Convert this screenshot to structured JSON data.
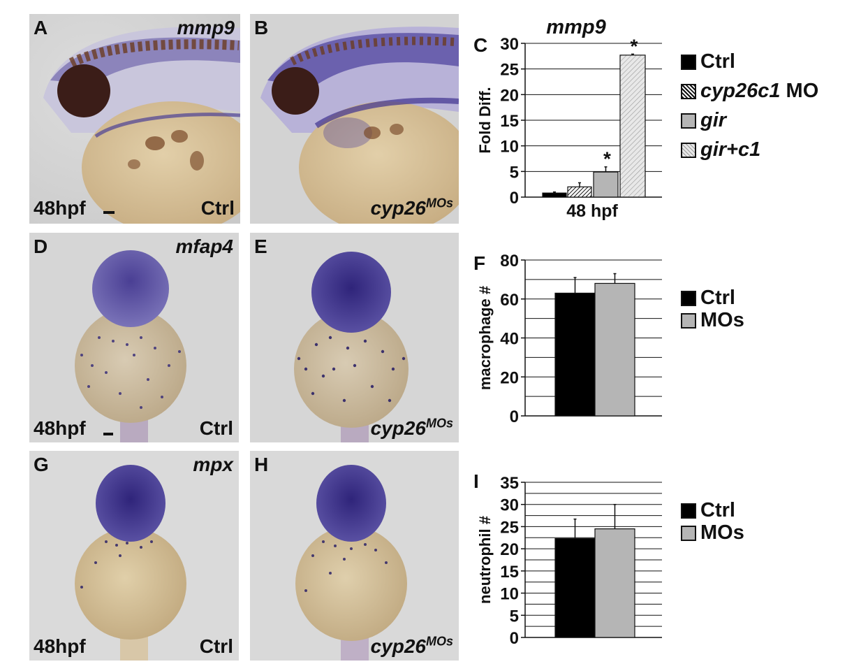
{
  "photo_panels": [
    {
      "letter": "A",
      "probe": "mmp9",
      "stage": "48hpf",
      "condition": "Ctrl",
      "condition_sup": ""
    },
    {
      "letter": "B",
      "probe": "",
      "stage": "",
      "condition": "cyp26",
      "condition_sup": "MOs"
    },
    {
      "letter": "D",
      "probe": "mfap4",
      "stage": "48hpf",
      "condition": "Ctrl",
      "condition_sup": ""
    },
    {
      "letter": "E",
      "probe": "",
      "stage": "",
      "condition": "cyp26",
      "condition_sup": "MOs"
    },
    {
      "letter": "G",
      "probe": "mpx",
      "stage": "48hpf",
      "condition": "Ctrl",
      "condition_sup": ""
    },
    {
      "letter": "H",
      "probe": "",
      "stage": "",
      "condition": "cyp26",
      "condition_sup": "MOs"
    }
  ],
  "colors": {
    "ctrl": "#000000",
    "gray": "#b5b5b5",
    "hatch_light": "#e8e8e8",
    "stain": "#3d3a8c",
    "yolk": "#c7ad83",
    "background": "#d9d9d9"
  },
  "chart_data": [
    {
      "panel": "C",
      "type": "bar",
      "title": "mmp9",
      "ylabel": "Fold Diff.",
      "xlabel": "48 hpf",
      "ylim": [
        0,
        30
      ],
      "yticks": [
        0,
        5,
        10,
        15,
        20,
        25,
        30
      ],
      "grid": true,
      "legend_position": "right",
      "series": [
        {
          "name": "Ctrl",
          "name_parts": [
            {
              "text": "Ctrl",
              "italic": false
            }
          ],
          "value": 0.8,
          "error": 0.2,
          "fill": "solid-black",
          "significant": false
        },
        {
          "name": "cyp26c1 MO",
          "name_parts": [
            {
              "text": "cyp26c1",
              "italic": true
            },
            {
              "text": " MO",
              "italic": false
            }
          ],
          "value": 2.0,
          "error": 0.8,
          "fill": "dense-hatch",
          "significant": false
        },
        {
          "name": "gir",
          "name_parts": [
            {
              "text": "gir",
              "italic": true
            }
          ],
          "value": 4.9,
          "error": 1.0,
          "fill": "gray",
          "significant": true
        },
        {
          "name": "gir+c1",
          "name_parts": [
            {
              "text": "gir+c1",
              "italic": true
            }
          ],
          "value": 27.7,
          "error": 0.2,
          "fill": "light-hatch",
          "significant": true
        }
      ],
      "significance_marker": "*"
    },
    {
      "panel": "F",
      "type": "bar",
      "title": "",
      "ylabel": "macrophage #",
      "xlabel": "",
      "ylim": [
        0,
        80
      ],
      "yticks": [
        0,
        20,
        40,
        60,
        80
      ],
      "grid": true,
      "legend_position": "right",
      "series": [
        {
          "name": "Ctrl",
          "name_parts": [
            {
              "text": "Ctrl",
              "italic": false
            }
          ],
          "value": 63,
          "error": 8,
          "fill": "solid-black"
        },
        {
          "name": "MOs",
          "name_parts": [
            {
              "text": "MOs",
              "italic": false
            }
          ],
          "value": 68,
          "error": 5,
          "fill": "gray"
        }
      ]
    },
    {
      "panel": "I",
      "type": "bar",
      "title": "",
      "ylabel": "neutrophil #",
      "xlabel": "",
      "ylim": [
        0,
        35
      ],
      "yticks": [
        0,
        5,
        10,
        15,
        20,
        25,
        30,
        35
      ],
      "grid": true,
      "legend_position": "right",
      "series": [
        {
          "name": "Ctrl",
          "name_parts": [
            {
              "text": "Ctrl",
              "italic": false
            }
          ],
          "value": 22.3,
          "error": 4.4,
          "fill": "solid-black"
        },
        {
          "name": "MOs",
          "name_parts": [
            {
              "text": "MOs",
              "italic": false
            }
          ],
          "value": 24.5,
          "error": 5.5,
          "fill": "gray"
        }
      ]
    }
  ]
}
